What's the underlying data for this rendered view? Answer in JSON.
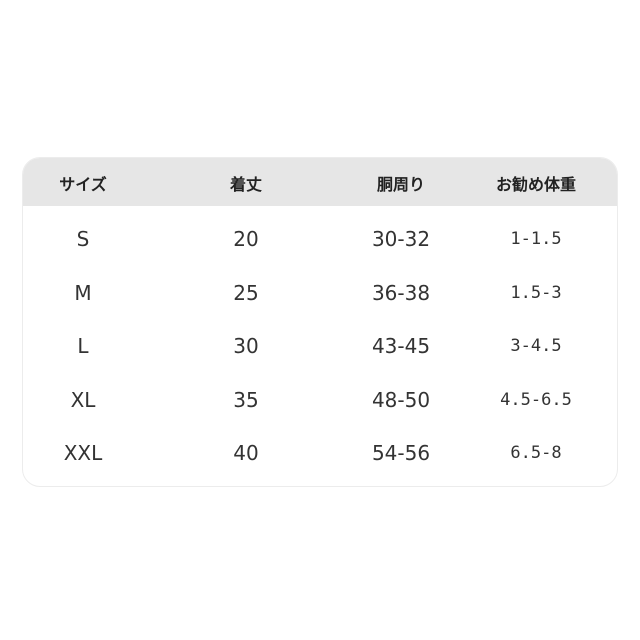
{
  "table": {
    "headers": [
      "サイズ",
      "着丈",
      "胴周り",
      "お勧め体重"
    ],
    "rows": [
      [
        "S",
        "20",
        "30-32",
        "1-1.5"
      ],
      [
        "M",
        "25",
        "36-38",
        "1.5-3"
      ],
      [
        "L",
        "30",
        "43-45",
        "3-4.5"
      ],
      [
        "XL",
        "35",
        "48-50",
        "4.5-6.5"
      ],
      [
        "XXL",
        "40",
        "54-56",
        "6.5-8"
      ]
    ]
  },
  "colors": {
    "header_bg": "#e6e6e6",
    "text": "#222222"
  }
}
